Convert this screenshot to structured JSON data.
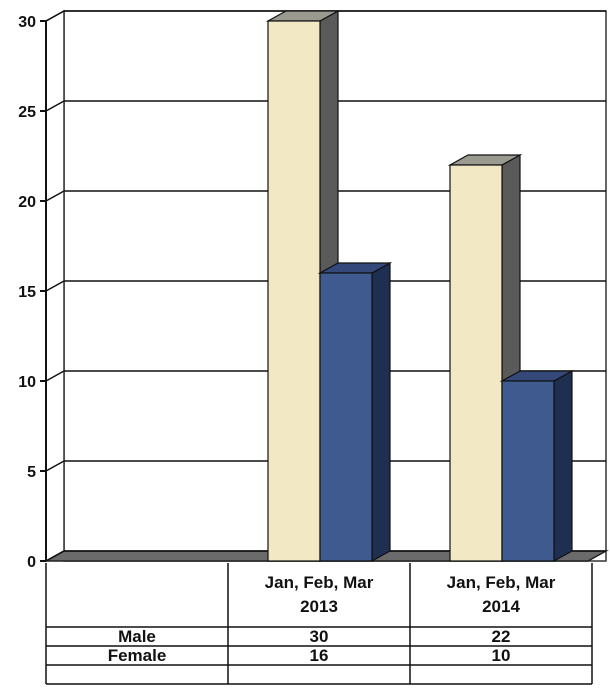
{
  "chart_data": {
    "type": "bar",
    "title": "",
    "xlabel": "",
    "ylabel": "",
    "ylim": [
      0,
      30
    ],
    "yticks": [
      0,
      5,
      10,
      15,
      20,
      25,
      30
    ],
    "grid": true,
    "legend": "data table below chart",
    "categories": [
      [
        "Jan, Feb, Mar",
        "2013"
      ],
      [
        "Jan, Feb, Mar",
        "2014"
      ]
    ],
    "series": [
      {
        "name": "Male",
        "values": [
          30,
          22
        ],
        "color": "#f2e8c4"
      },
      {
        "name": "Female",
        "values": [
          16,
          10
        ],
        "color": "#3e5a8e"
      }
    ]
  }
}
